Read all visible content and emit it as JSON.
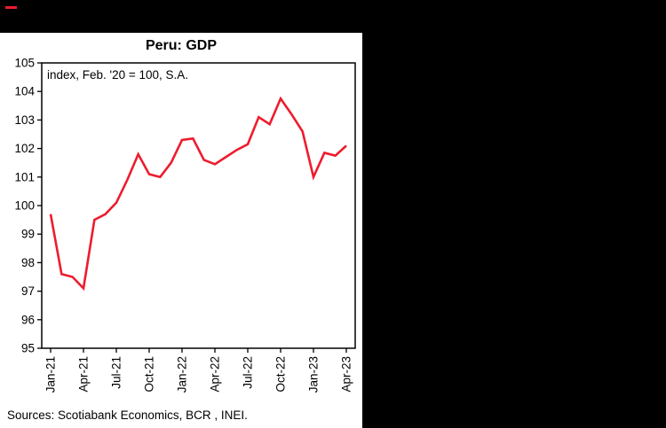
{
  "window": {
    "top_accent_color": "#ec1c2e"
  },
  "chart": {
    "title": "Peru: GDP",
    "subtitle": "index, Feb. '20 = 100, S.A.",
    "source": "Sources: Scotiabank Economics, BCR , INEI.",
    "line_color": "#ed1c2e"
  },
  "chart_data": {
    "type": "line",
    "title": "Peru: GDP",
    "subtitle": "index, Feb. '20 = 100, S.A.",
    "x": [
      "Jan-21",
      "Feb-21",
      "Mar-21",
      "Apr-21",
      "May-21",
      "Jun-21",
      "Jul-21",
      "Aug-21",
      "Sep-21",
      "Oct-21",
      "Nov-21",
      "Dec-21",
      "Jan-22",
      "Feb-22",
      "Mar-22",
      "Apr-22",
      "May-22",
      "Jun-22",
      "Jul-22",
      "Aug-22",
      "Sep-22",
      "Oct-22",
      "Nov-22",
      "Dec-22",
      "Jan-23",
      "Feb-23",
      "Mar-23",
      "Apr-23"
    ],
    "series": [
      {
        "name": "Peru GDP index (Feb. '20 = 100, S.A.)",
        "values": [
          99.7,
          97.6,
          97.5,
          97.1,
          99.5,
          99.7,
          100.1,
          100.9,
          101.8,
          101.1,
          101.0,
          101.5,
          102.3,
          102.35,
          101.6,
          101.45,
          101.7,
          101.95,
          102.15,
          103.1,
          102.85,
          103.75,
          103.2,
          102.6,
          101.0,
          101.85,
          101.75,
          102.1
        ]
      }
    ],
    "xlabel": "",
    "ylabel": "index, Feb. '20 = 100, S.A.",
    "ylim": [
      95,
      105
    ],
    "ytick_step": 1,
    "xtick_every": 3,
    "xtick_labels": [
      "Jan-21",
      "Apr-21",
      "Jul-21",
      "Oct-21",
      "Jan-22",
      "Apr-22",
      "Jul-22",
      "Oct-22",
      "Jan-23",
      "Apr-23"
    ],
    "grid": false,
    "legend": false,
    "line_color": "#ed1c2e"
  }
}
